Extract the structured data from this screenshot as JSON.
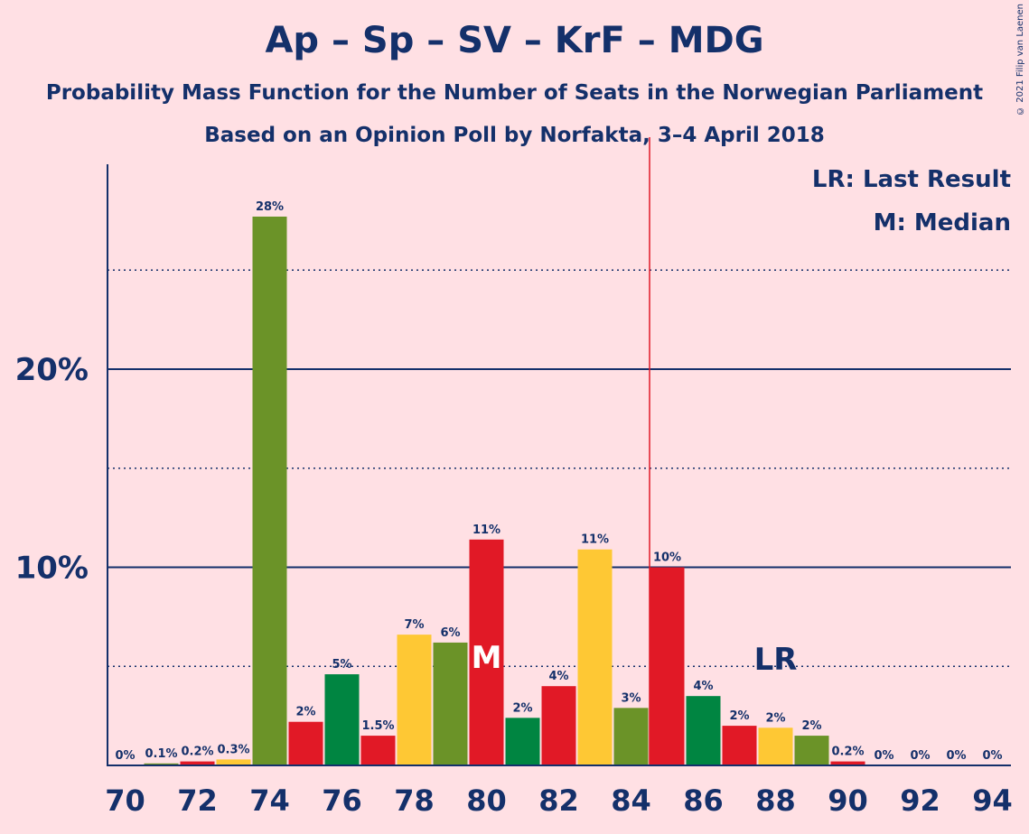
{
  "title": "Ap – Sp – SV – KrF – MDG",
  "subtitle": "Probability Mass Function for the Number of Seats in the Norwegian Parliament",
  "subtitle2": "Based on an Opinion Poll by Norfakta, 3–4 April 2018",
  "legend": {
    "lr": "LR: Last Result",
    "median": "M: Median"
  },
  "copyright": "© 2021 Filip van Laenen",
  "colors": {
    "background": "#FFE0E4",
    "text": "#14306A",
    "Ap": "#E11926",
    "Sp": "#6B9328",
    "SV": "#008541",
    "KrF": "#FEC834",
    "last_result_line": "#E11926"
  },
  "chart_data": {
    "type": "bar",
    "x": [
      70,
      71,
      72,
      73,
      74,
      75,
      76,
      77,
      78,
      79,
      80,
      81,
      82,
      83,
      84,
      85,
      86,
      87,
      88,
      89,
      90,
      91,
      92,
      93,
      94
    ],
    "values": [
      0,
      0.1,
      0.2,
      0.3,
      27.7,
      2.2,
      4.6,
      1.5,
      6.6,
      6.2,
      11.4,
      2.4,
      4.0,
      10.9,
      2.9,
      10.0,
      3.5,
      2.0,
      1.9,
      1.5,
      0.2,
      0,
      0,
      0,
      0
    ],
    "labels": [
      "0%",
      "0.1%",
      "0.2%",
      "0.3%",
      "28%",
      "2%",
      "5%",
      "1.5%",
      "7%",
      "6%",
      "11%",
      "2%",
      "4%",
      "11%",
      "3%",
      "10%",
      "4%",
      "2%",
      "2%",
      "2%",
      "0.2%",
      "0%",
      "0%",
      "0%",
      "0%"
    ],
    "bar_colors": [
      "#E11926",
      "#6B9328",
      "#E11926",
      "#FEC834",
      "#6B9328",
      "#E11926",
      "#008541",
      "#E11926",
      "#FEC834",
      "#6B9328",
      "#E11926",
      "#008541",
      "#E11926",
      "#FEC834",
      "#6B9328",
      "#E11926",
      "#008541",
      "#E11926",
      "#FEC834",
      "#6B9328",
      "#E11926",
      "#008541",
      "#E11926",
      "#FEC834",
      "#6B9328"
    ],
    "x_tick_labels": [
      "70",
      "72",
      "74",
      "76",
      "78",
      "80",
      "82",
      "84",
      "86",
      "88",
      "90",
      "92",
      "94"
    ],
    "y_tick_labels": [
      "10%",
      "20%"
    ],
    "y_ticks": [
      10,
      20
    ],
    "y_minor_ticks": [
      5,
      15,
      25
    ],
    "ylim": [
      0,
      30
    ],
    "median": 80,
    "median_marker": "M",
    "last_result": 85,
    "last_result_marker": "LR"
  }
}
